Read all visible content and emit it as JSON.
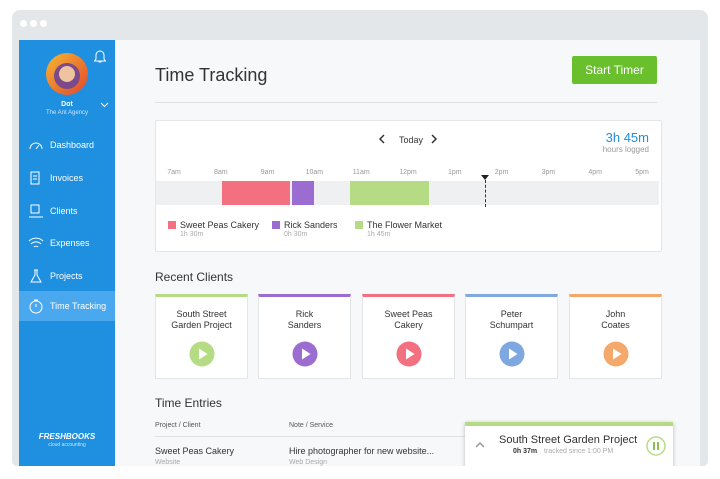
{
  "sidebar": {
    "user": "Dot",
    "company": "The Ant Agency",
    "nav": [
      "Dashboard",
      "Invoices",
      "Clients",
      "Expenses",
      "Projects",
      "Time Tracking"
    ],
    "logo": "FRESHBOOKS",
    "tagline": "cloud accounting"
  },
  "header": {
    "title": "Time Tracking",
    "button": "Start Timer"
  },
  "timeline": {
    "day": "Today",
    "total": "3h 45m",
    "total_label": "hours logged",
    "hours": [
      "7am",
      "8am",
      "9am",
      "10am",
      "11am",
      "12pm",
      "1pm",
      "2pm",
      "3pm",
      "4pm",
      "5pm"
    ],
    "legend": [
      {
        "name": "Sweet Peas Cakery",
        "duration": "1h 30m"
      },
      {
        "name": "Rick Sanders",
        "duration": "0h 30m"
      },
      {
        "name": "The Flower Market",
        "duration": "1h 45m"
      }
    ]
  },
  "recent_clients": {
    "title": "Recent Clients",
    "clients": [
      [
        "South Street",
        "Garden Project"
      ],
      [
        "Rick",
        "Sanders"
      ],
      [
        "Sweet Peas",
        "Cakery"
      ],
      [
        "Peter",
        "Schumpart"
      ],
      [
        "John",
        "Coates"
      ]
    ]
  },
  "time_entries": {
    "title": "Time Entries",
    "columns": [
      "Project / Client",
      "Note / Service"
    ],
    "rows": [
      {
        "project": "Sweet Peas Cakery",
        "client": "Website",
        "note": "Hire photographer for new website...",
        "service": "Web Design"
      }
    ]
  },
  "active_timer": {
    "project": "South Street Garden Project",
    "elapsed": "0h 37m",
    "since": "tracked since 1:00 PM"
  }
}
